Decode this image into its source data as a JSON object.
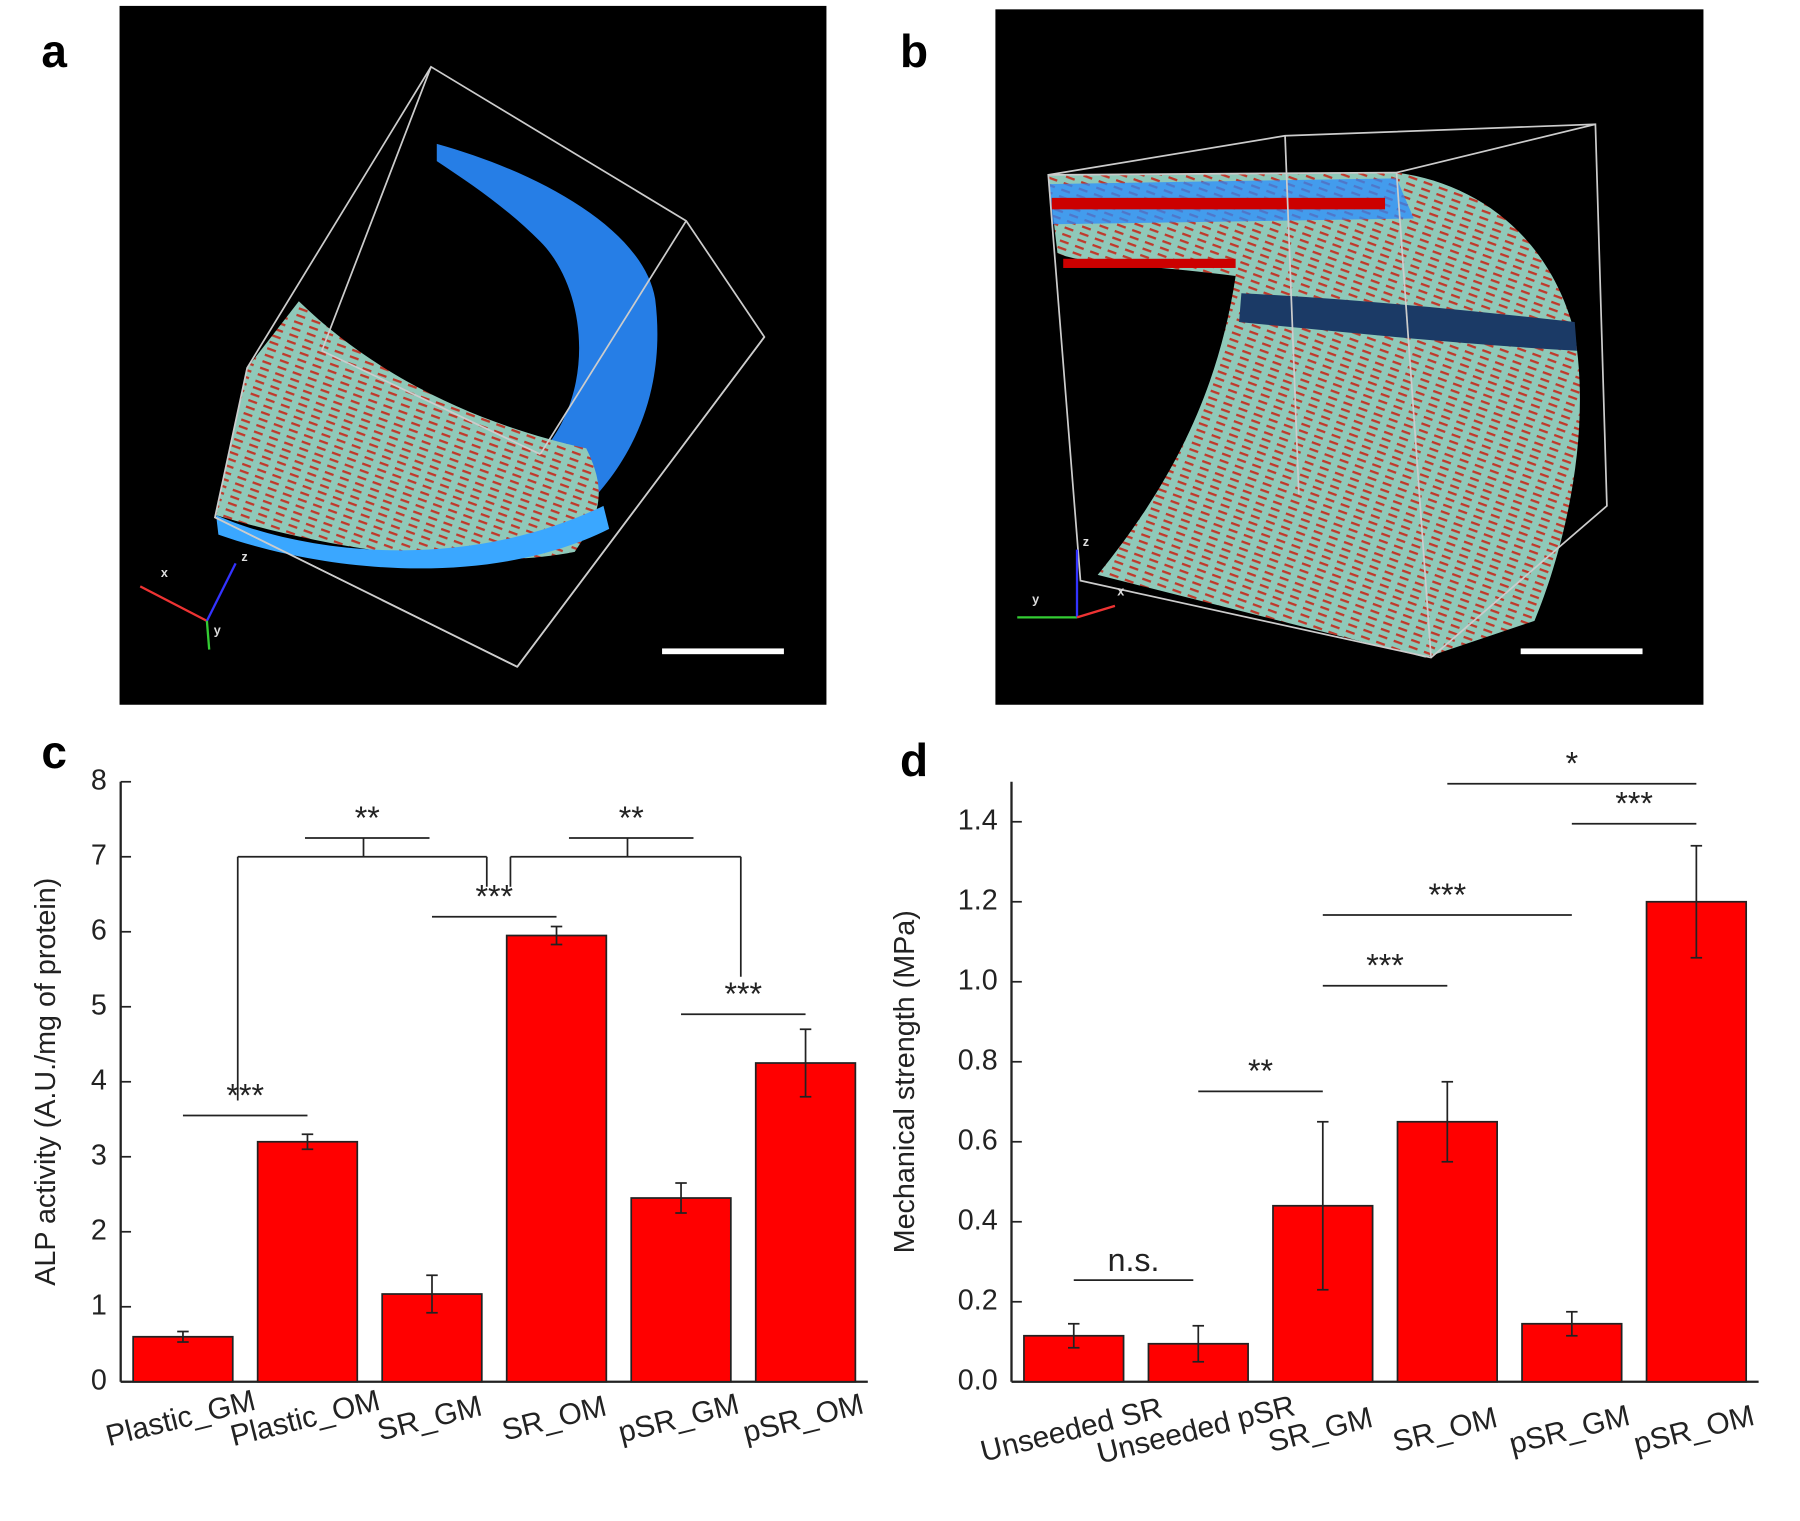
{
  "panel_labels": [
    "a",
    "b",
    "c",
    "d"
  ],
  "images": [
    {
      "axis_labels": [
        "x",
        "z",
        "y"
      ]
    },
    {
      "axis_labels": [
        "z",
        "y",
        "x"
      ]
    }
  ],
  "chart_data": [
    {
      "type": "bar",
      "ylabel": "ALP activity (A.U./mg of protein)",
      "categories": [
        "Plastic_GM",
        "Plastic_OM",
        "SR_GM",
        "SR_OM",
        "pSR_GM",
        "pSR_OM"
      ],
      "values": [
        0.6,
        3.2,
        1.17,
        5.95,
        2.45,
        4.25
      ],
      "errors": [
        0.07,
        0.1,
        0.25,
        0.12,
        0.2,
        0.45
      ],
      "color": "#ff0000",
      "ylim": [
        0,
        8
      ],
      "yticks": [
        0,
        1,
        2,
        3,
        4,
        5,
        6,
        7,
        8
      ],
      "annotations": [
        "***",
        "***",
        "***",
        "**",
        "**"
      ]
    },
    {
      "type": "bar",
      "ylabel": "Mechanical strength (MPa)",
      "categories": [
        "Unseeded SR",
        "Unseeded pSR",
        "SR_GM",
        "SR_OM",
        "pSR_GM",
        "pSR_OM"
      ],
      "values": [
        0.115,
        0.095,
        0.44,
        0.65,
        0.145,
        1.2
      ],
      "errors": [
        0.03,
        0.045,
        0.21,
        0.1,
        0.03,
        0.14
      ],
      "color": "#ff0000",
      "ylim": [
        0,
        1.5
      ],
      "yticks": [
        {
          "value": 0,
          "label": "0.0"
        },
        0.2,
        0.4,
        0.6,
        0.8,
        {
          "value": 1,
          "label": "1.0"
        },
        1.2,
        1.4
      ],
      "annotations": [
        "n.s.",
        "**",
        "***",
        "***",
        "***",
        "*"
      ]
    }
  ]
}
